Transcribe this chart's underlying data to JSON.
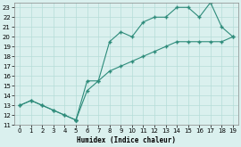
{
  "xlabel": "Humidex (Indice chaleur)",
  "xlim": [
    -0.5,
    19.5
  ],
  "ylim": [
    11,
    23.5
  ],
  "yticks": [
    11,
    12,
    13,
    14,
    15,
    16,
    17,
    18,
    19,
    20,
    21,
    22,
    23
  ],
  "xticks": [
    0,
    1,
    2,
    3,
    4,
    5,
    6,
    7,
    8,
    9,
    10,
    11,
    12,
    13,
    14,
    15,
    16,
    17,
    18,
    19
  ],
  "shared_x": [
    0,
    1,
    2,
    3,
    4,
    5
  ],
  "shared_y": [
    13,
    13.5,
    13,
    12.5,
    12,
    11.5
  ],
  "line1_x": [
    5,
    6,
    7,
    8,
    9,
    10,
    11,
    12,
    13,
    14,
    15,
    16,
    17,
    18,
    19
  ],
  "line1_y": [
    11.5,
    15.5,
    15.5,
    19.5,
    20.5,
    20.0,
    21.5,
    22.0,
    22.0,
    23.0,
    23.0,
    22.0,
    23.5,
    21.0,
    20.0
  ],
  "line2_x": [
    5,
    6,
    7,
    8,
    9,
    10,
    11,
    12,
    13,
    14,
    15,
    16,
    17,
    18,
    19
  ],
  "line2_y": [
    11.5,
    14.5,
    15.5,
    16.5,
    17.0,
    17.5,
    18.0,
    18.5,
    19.0,
    19.5,
    19.5,
    19.5,
    19.5,
    19.5,
    20.0
  ],
  "line_color": "#2d8b7a",
  "bg_color": "#daf0ee",
  "grid_color": "#b5dcd8",
  "marker": "+"
}
